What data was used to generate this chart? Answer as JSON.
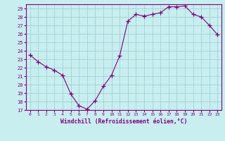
{
  "hours": [
    0,
    1,
    2,
    3,
    4,
    5,
    6,
    7,
    8,
    9,
    10,
    11,
    12,
    13,
    14,
    15,
    16,
    17,
    18,
    19,
    20,
    21,
    22,
    23
  ],
  "windchill": [
    23.5,
    22.7,
    22.1,
    21.7,
    21.1,
    18.9,
    17.5,
    17.1,
    18.1,
    19.8,
    21.1,
    23.4,
    27.5,
    28.3,
    28.1,
    28.3,
    28.5,
    29.2,
    29.2,
    29.3,
    28.3,
    28.0,
    27.0,
    25.9
  ],
  "ylim": [
    17,
    29.5
  ],
  "yticks": [
    17,
    18,
    19,
    20,
    21,
    22,
    23,
    24,
    25,
    26,
    27,
    28,
    29
  ],
  "xtick_labels": [
    "0",
    "1",
    "2",
    "3",
    "4",
    "5",
    "6",
    "7",
    "8",
    "9",
    "10",
    "11",
    "12",
    "13",
    "14",
    "15",
    "16",
    "17",
    "18",
    "19",
    "20",
    "21",
    "22",
    "23"
  ],
  "line_color": "#800080",
  "marker_color": "#800080",
  "bg_color": "#c8eef0",
  "grid_color": "#99cccc",
  "xlabel": "Windchill (Refroidissement éolien,°C)",
  "tick_color": "#800080",
  "spine_color": "#800080"
}
